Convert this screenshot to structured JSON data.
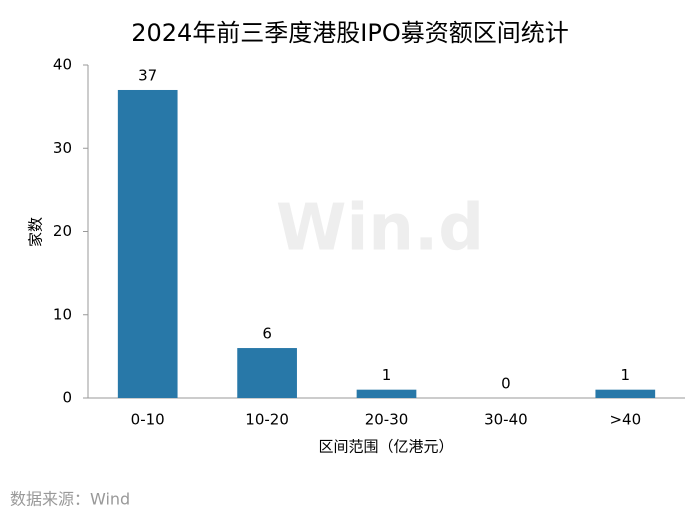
{
  "chart_data": {
    "type": "bar",
    "title": "2024年前三季度港股IPO募资额区间统计",
    "categories": [
      "0-10",
      "10-20",
      "20-30",
      "30-40",
      ">40"
    ],
    "values": [
      37,
      6,
      1,
      0,
      1
    ],
    "color": "#2878a8",
    "ylim": [
      0,
      40
    ],
    "yticks": [
      0,
      10,
      20,
      30,
      40
    ],
    "y_label": "家数",
    "x_label": "区间范围（亿港元）",
    "source": "数据来源：Wind",
    "watermark": "Win.d"
  }
}
